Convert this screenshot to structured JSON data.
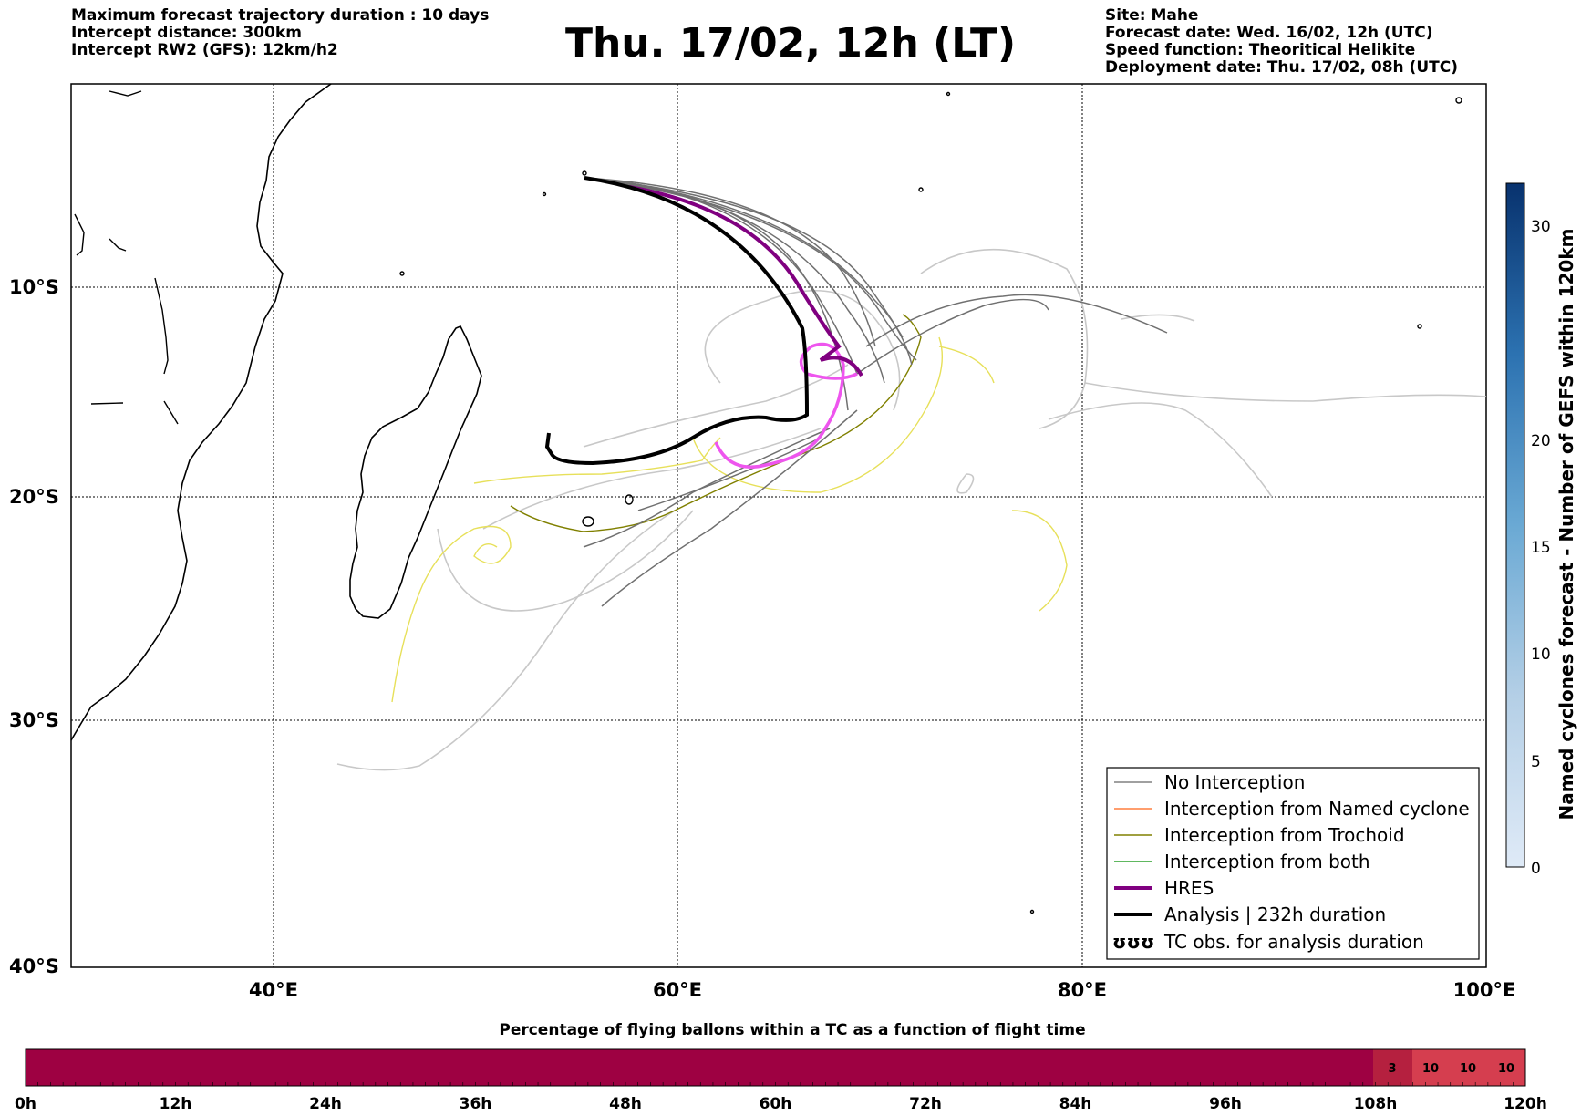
{
  "header": {
    "left_lines": [
      "Maximum forecast trajectory duration : 10 days",
      "Intercept distance: 300km",
      "Intercept RW2 (GFS):  12km/h2"
    ],
    "title": "Thu. 17/02, 12h (LT)",
    "right_lines": [
      "Site: Mahe",
      "Forecast date: Wed. 16/02, 12h (UTC)",
      "Speed function: Theoritical Helikite",
      "Deployment date: Thu. 17/02, 08h (UTC)"
    ]
  },
  "map": {
    "lat_labels": [
      "10°S",
      "20°S",
      "30°S",
      "40°S"
    ],
    "lon_labels": [
      "40°E",
      "60°E",
      "80°E",
      "100°E"
    ]
  },
  "legend": {
    "items": [
      {
        "label": "No Interception",
        "color": "#808080"
      },
      {
        "label": "Interception from Named cyclone",
        "color": "#ff7f3f"
      },
      {
        "label": "Interception from Trochoid",
        "color": "#808000"
      },
      {
        "label": "Interception from both",
        "color": "#2ca02c"
      },
      {
        "label": "HRES",
        "color": "#800080"
      },
      {
        "label": "Analysis | 232h duration",
        "color": "#000000"
      },
      {
        "label": "TC obs. for analysis duration",
        "color": "#000000"
      }
    ],
    "symbol_text": "ʊʊʊ"
  },
  "colorbar": {
    "title": "Named cyclones forecast - Number of GEFS within 120km",
    "ticks": [
      "0",
      "5",
      "10",
      "15",
      "20",
      "30"
    ]
  },
  "bottom_bar": {
    "title": "Percentage of flying ballons within a TC as a function of flight time",
    "ticks": [
      "0h",
      "12h",
      "24h",
      "36h",
      "48h",
      "60h",
      "72h",
      "84h",
      "96h",
      "108h",
      "120h"
    ],
    "values": [
      "3",
      "10",
      "10",
      "10"
    ],
    "colors": {
      "base": "#9e0142",
      "mid": "#b5203f",
      "high": "#d53e4f"
    }
  }
}
